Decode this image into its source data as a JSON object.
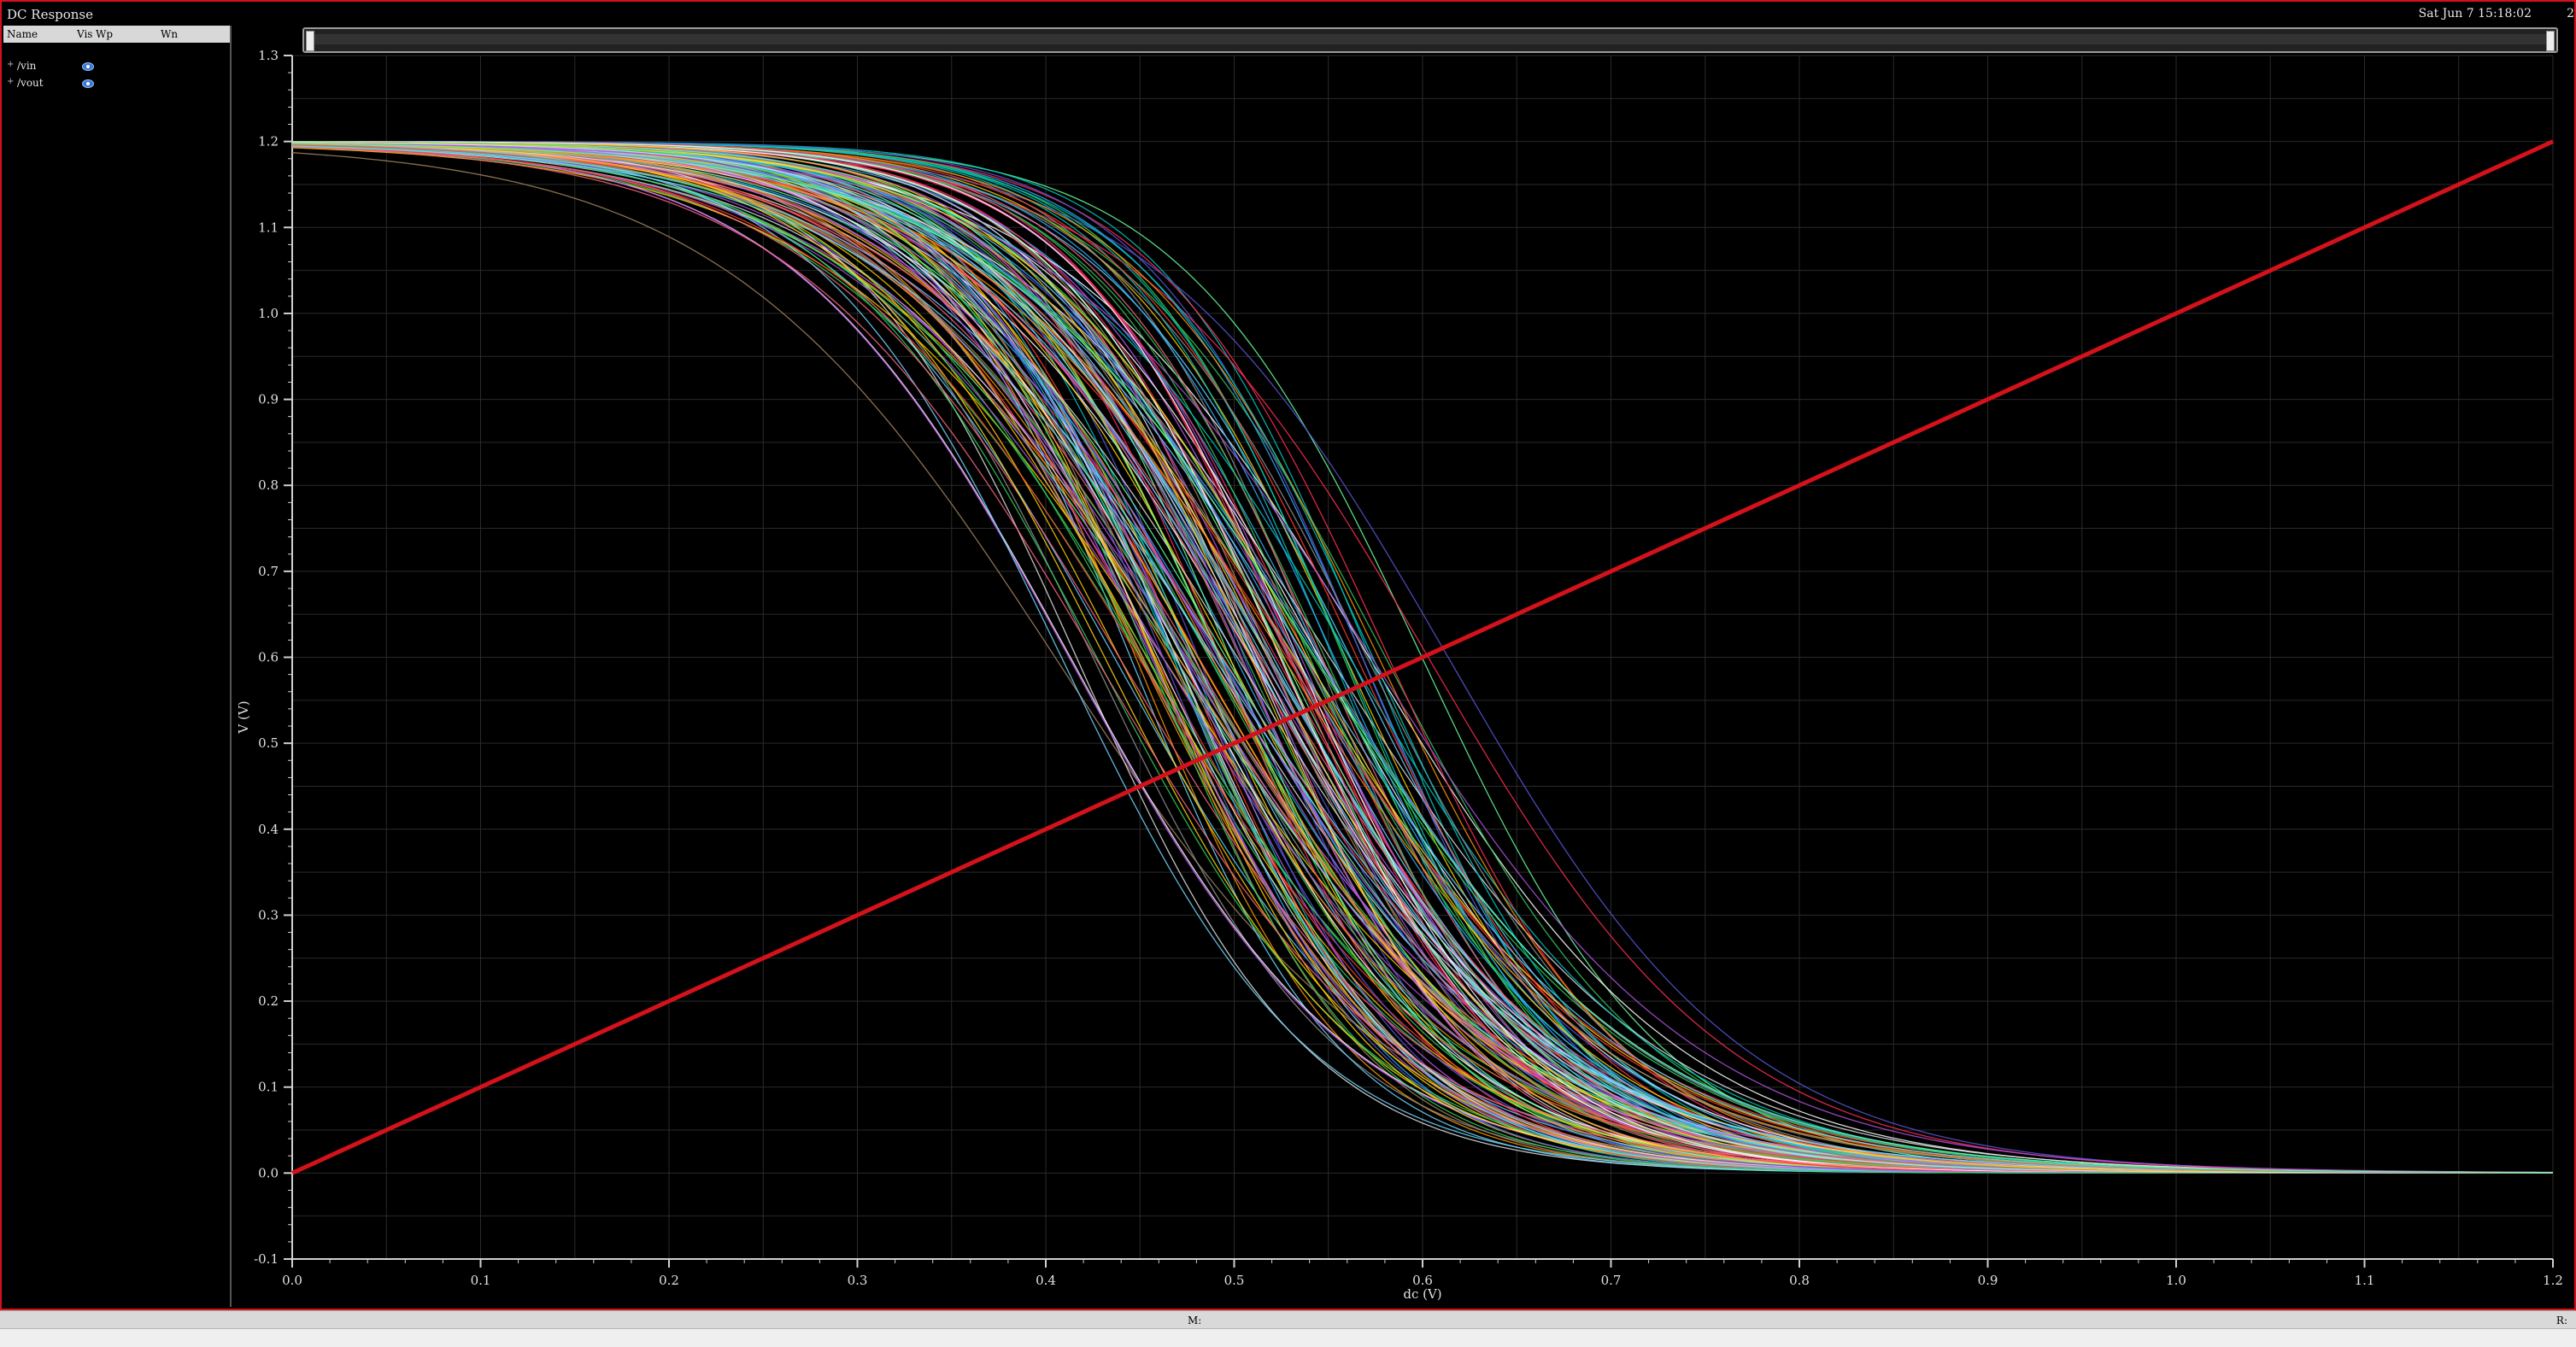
{
  "window": {
    "title": "DC Response",
    "datetime": "Sat Jun 7 15:18:02",
    "corner_label": "2"
  },
  "sidebar": {
    "headers": {
      "name": "Name",
      "vis": "Vis",
      "wp": "Wp",
      "wn": "Wn"
    },
    "signals": [
      {
        "name": "/vin",
        "expander": "+"
      },
      {
        "name": "/vout",
        "expander": "+"
      }
    ]
  },
  "status": {
    "mouse_m": "M:",
    "mouse_r": "R:"
  },
  "colors": {
    "border": "#d3121b",
    "vin_line": "#d3121b",
    "grid": "#2a2a2a",
    "axis": "#d0d0d0"
  },
  "chart_data": {
    "type": "line",
    "xlabel": "dc (V)",
    "ylabel": "V (V)",
    "xlim": [
      0.0,
      1.2
    ],
    "ylim": [
      -0.1,
      1.3
    ],
    "x_ticks": [
      "0.0",
      "0.1",
      "0.2",
      "0.3",
      "0.4",
      "0.5",
      "0.6",
      "0.7",
      "0.8",
      "0.9",
      "1.0",
      "1.1",
      "1.2"
    ],
    "y_ticks": [
      "-0.1",
      "0.0",
      "0.1",
      "0.2",
      "0.3",
      "0.4",
      "0.5",
      "0.6",
      "0.7",
      "0.8",
      "0.9",
      "1.0",
      "1.1",
      "1.2",
      "1.3"
    ],
    "grid": true,
    "series": [
      {
        "name": "/vin",
        "color": "#d3121b",
        "x": [
          0.0,
          1.2
        ],
        "y": [
          0.0,
          1.2
        ]
      },
      {
        "name": "/vout",
        "color": "#d0d0d0",
        "description_curve": "inverter VTC family (Monte Carlo), VDD 1.2",
        "vdd": 1.2,
        "switching_points_min": 0.38,
        "switching_points_max": 0.64,
        "curves": 160
      }
    ]
  }
}
